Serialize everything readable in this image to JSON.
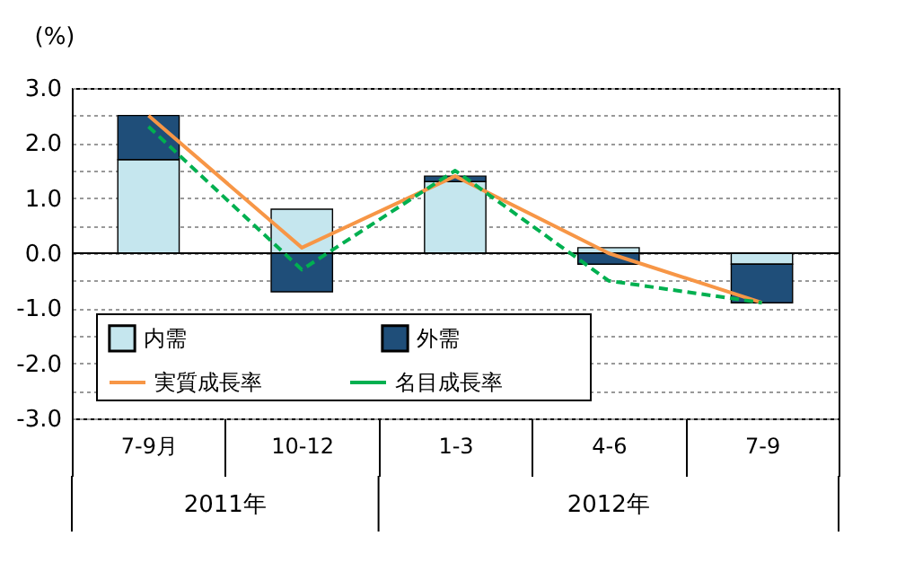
{
  "chart_data": {
    "type": "bar",
    "stacked": true,
    "ylabel": "(%)",
    "categories": [
      "7-9月",
      "10-12",
      "1-3",
      "4-6",
      "7-9"
    ],
    "series": [
      {
        "name": "内需",
        "type": "bar",
        "color": "#c5e6ee",
        "values": [
          1.7,
          0.8,
          1.3,
          0.1,
          -0.2
        ]
      },
      {
        "name": "外需",
        "type": "bar",
        "color": "#1f4e79",
        "values": [
          0.8,
          -0.7,
          0.1,
          -0.2,
          -0.7
        ]
      },
      {
        "name": "実質成長率",
        "type": "line",
        "line_style": "solid",
        "color": "#f79646",
        "values": [
          2.5,
          0.1,
          1.4,
          0.0,
          -0.9
        ]
      },
      {
        "name": "名目成長率",
        "type": "line",
        "line_style": "dashed",
        "color": "#00b050",
        "values": [
          2.3,
          -0.3,
          1.5,
          -0.5,
          -0.9
        ]
      }
    ],
    "ylim": [
      -3,
      3
    ],
    "yticks": [
      {
        "value": -3,
        "label": "-3.0"
      },
      {
        "value": -2.5,
        "label": null
      },
      {
        "value": -2,
        "label": "-2.0"
      },
      {
        "value": -1.5,
        "label": null
      },
      {
        "value": -1,
        "label": "-1.0"
      },
      {
        "value": -0.5,
        "label": null
      },
      {
        "value": 0,
        "label": "0.0"
      },
      {
        "value": 0.5,
        "label": null
      },
      {
        "value": 1,
        "label": "1.0"
      },
      {
        "value": 1.5,
        "label": null
      },
      {
        "value": 2,
        "label": "2.0"
      },
      {
        "value": 2.5,
        "label": null
      },
      {
        "value": 3,
        "label": "3.0"
      }
    ],
    "grid": "y",
    "legend": "bottom left",
    "annotations": [
      "2011年",
      "2012年"
    ]
  }
}
